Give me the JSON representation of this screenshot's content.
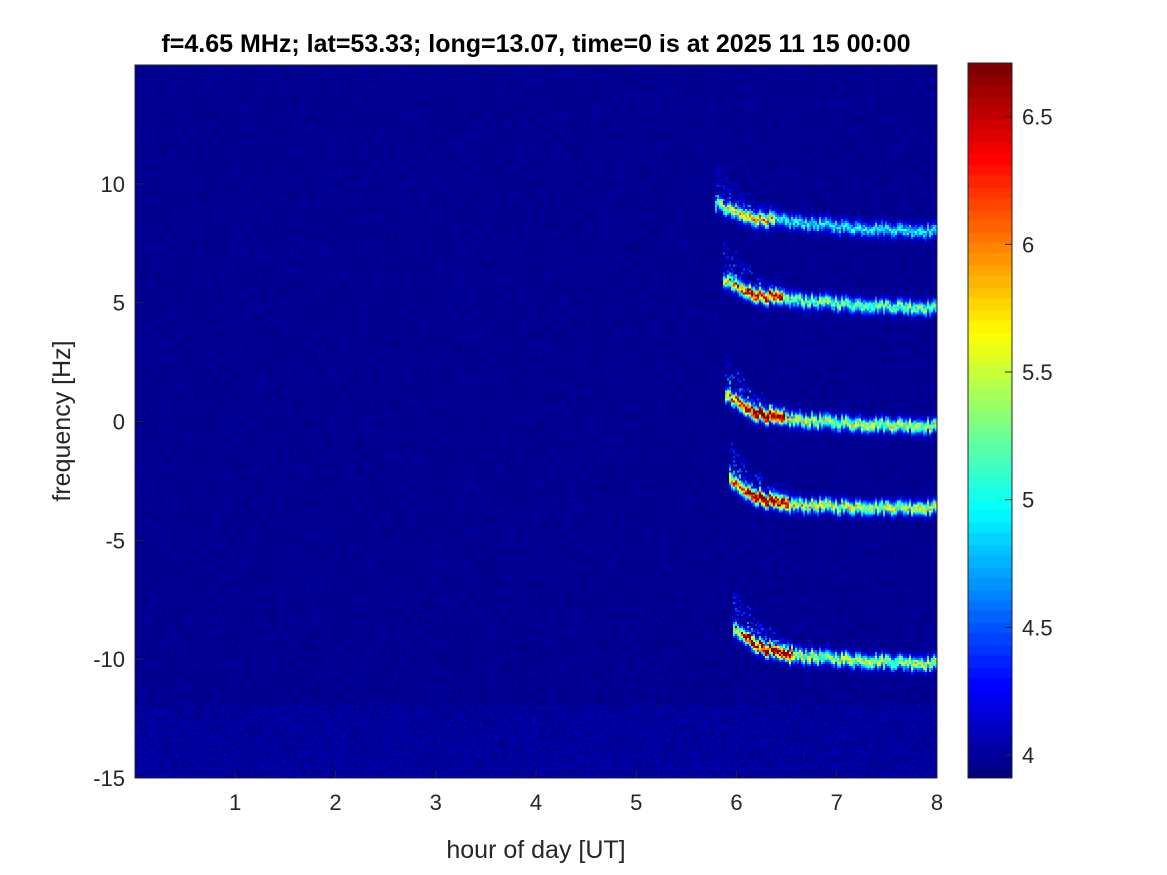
{
  "chart_data": {
    "type": "heatmap",
    "title": "f=4.65 MHz;  lat=53.33; long=13.07, time=0 is at 2025 11 15 00:00",
    "xlabel": "hour of day [UT]",
    "ylabel": "frequency [Hz]",
    "xlim": [
      0,
      8
    ],
    "ylim": [
      -15,
      15
    ],
    "xticks": [
      1,
      2,
      3,
      4,
      5,
      6,
      7,
      8
    ],
    "yticks": [
      -15,
      -10,
      -5,
      0,
      5,
      10
    ],
    "colormap": "jet",
    "clim": [
      3.91,
      6.71
    ],
    "colorbar_ticks": [
      4,
      4.5,
      5,
      5.5,
      6,
      6.5
    ],
    "background_value": 3.98,
    "traces": [
      {
        "points": [
          [
            5.79,
            9.15
          ],
          [
            6.1,
            8.6
          ],
          [
            6.44,
            8.43
          ],
          [
            7.2,
            8.15
          ],
          [
            8.0,
            8.0
          ]
        ],
        "peak": 5.6
      },
      {
        "points": [
          [
            5.86,
            6.0
          ],
          [
            6.1,
            5.4
          ],
          [
            6.44,
            5.14
          ],
          [
            7.2,
            4.9
          ],
          [
            8.0,
            4.76
          ]
        ],
        "peak": 6.2
      },
      {
        "points": [
          [
            5.89,
            1.14
          ],
          [
            6.1,
            0.5
          ],
          [
            6.44,
            0.09
          ],
          [
            7.2,
            -0.1
          ],
          [
            8.0,
            -0.21
          ]
        ],
        "peak": 6.6
      },
      {
        "points": [
          [
            5.92,
            -2.44
          ],
          [
            6.1,
            -3.0
          ],
          [
            6.44,
            -3.5
          ],
          [
            7.2,
            -3.6
          ],
          [
            8.0,
            -3.62
          ]
        ],
        "peak": 6.6
      },
      {
        "points": [
          [
            5.97,
            -8.76
          ],
          [
            6.2,
            -9.4
          ],
          [
            6.44,
            -9.82
          ],
          [
            7.2,
            -10.05
          ],
          [
            8.0,
            -10.2
          ]
        ],
        "peak": 6.5
      }
    ]
  }
}
